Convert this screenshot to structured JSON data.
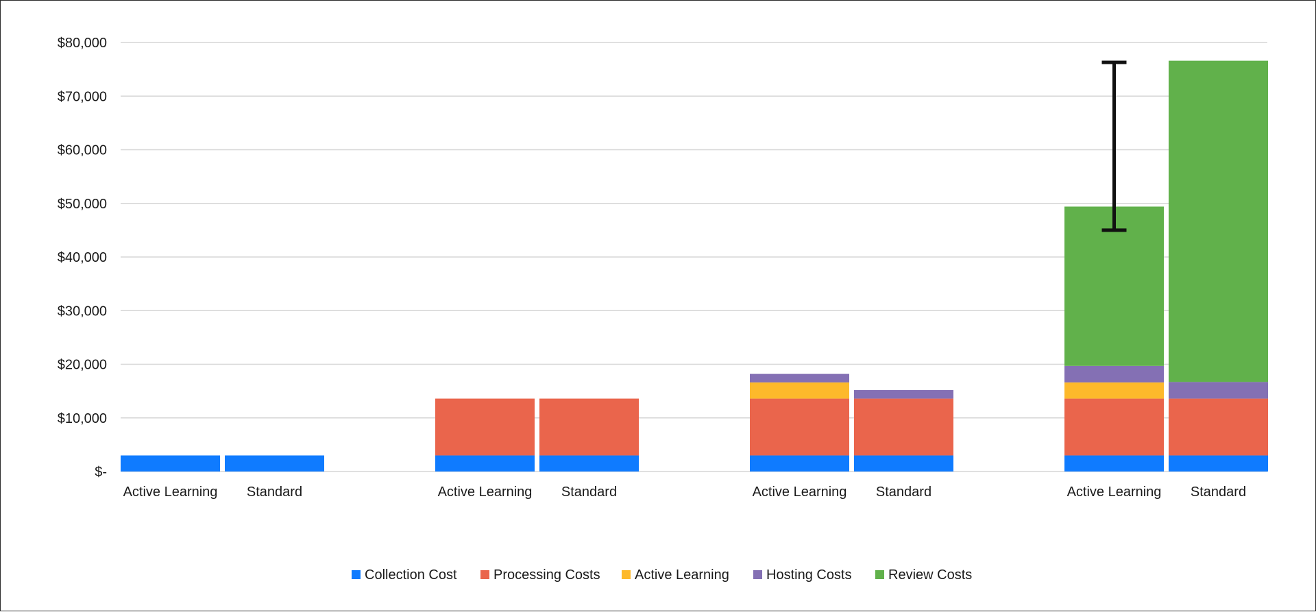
{
  "chart_data": {
    "type": "bar",
    "stacked": true,
    "title": "",
    "xlabel": "",
    "ylabel": "",
    "ylim": [
      0,
      80000
    ],
    "y_ticks": [
      {
        "value": 0,
        "label": "$-"
      },
      {
        "value": 10000,
        "label": "$10,000"
      },
      {
        "value": 20000,
        "label": "$20,000"
      },
      {
        "value": 30000,
        "label": "$30,000"
      },
      {
        "value": 40000,
        "label": "$40,000"
      },
      {
        "value": 50000,
        "label": "$50,000"
      },
      {
        "value": 60000,
        "label": "$60,000"
      },
      {
        "value": 70000,
        "label": "$70,000"
      },
      {
        "value": 80000,
        "label": "$80,000"
      }
    ],
    "grid": true,
    "legend_position": "bottom",
    "groups": 4,
    "bars_per_group": 2,
    "categories": [
      "Active Learning",
      "Standard",
      "Active Learning",
      "Standard",
      "Active Learning",
      "Standard",
      "Active Learning",
      "Standard"
    ],
    "series": [
      {
        "name": "Collection Cost",
        "color": "#0f7bff",
        "values": [
          3000,
          3000,
          3000,
          3000,
          3000,
          3000,
          3000,
          3000
        ]
      },
      {
        "name": "Processing Costs",
        "color": "#ea654c",
        "values": [
          0,
          0,
          10600,
          10600,
          10600,
          10600,
          10600,
          10600
        ]
      },
      {
        "name": "Active Learning",
        "color": "#fdb92b",
        "values": [
          0,
          0,
          0,
          0,
          3000,
          0,
          3000,
          0
        ]
      },
      {
        "name": "Hosting Costs",
        "color": "#8470b4",
        "values": [
          0,
          0,
          0,
          0,
          1600,
          1600,
          3100,
          3100
        ]
      },
      {
        "name": "Review Costs",
        "color": "#61b14b",
        "values": [
          0,
          0,
          0,
          0,
          0,
          0,
          29700,
          59900
        ]
      }
    ],
    "error_bar": {
      "bar_index": 6,
      "low": 45000,
      "high": 76300
    }
  }
}
